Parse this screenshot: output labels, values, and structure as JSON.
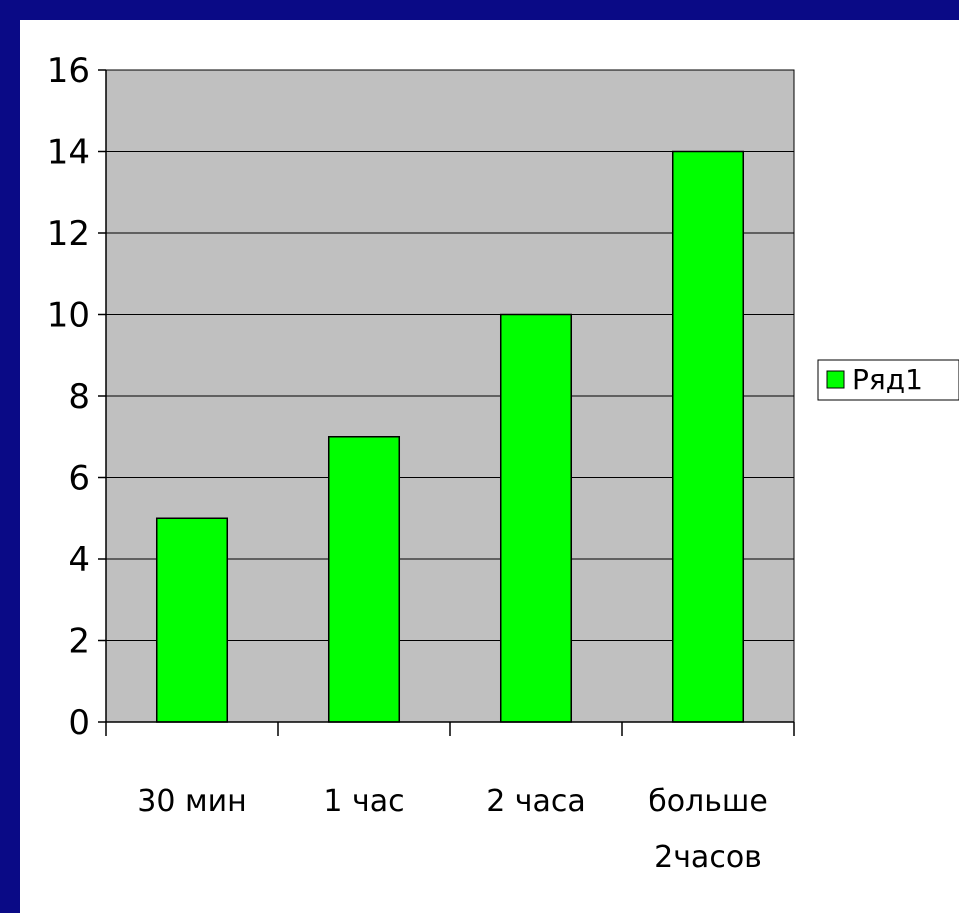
{
  "colors": {
    "frame_band": "#0a0a86",
    "plot_background": "#c0c0c0",
    "bar_fill": "#00ff00",
    "bar_stroke": "#000000",
    "gridline": "#000000"
  },
  "chart_data": {
    "type": "bar",
    "categories": [
      [
        "30 мин"
      ],
      [
        "1 час"
      ],
      [
        "2 часа"
      ],
      [
        "больше",
        "2часов"
      ]
    ],
    "series": [
      {
        "name": "Ряд1",
        "values": [
          5,
          7,
          10,
          14
        ]
      }
    ],
    "y_ticks": [
      "0",
      "2",
      "4",
      "6",
      "8",
      "10",
      "12",
      "14",
      "16"
    ],
    "ylim": [
      0,
      16
    ],
    "grid": true,
    "legend": "right"
  }
}
